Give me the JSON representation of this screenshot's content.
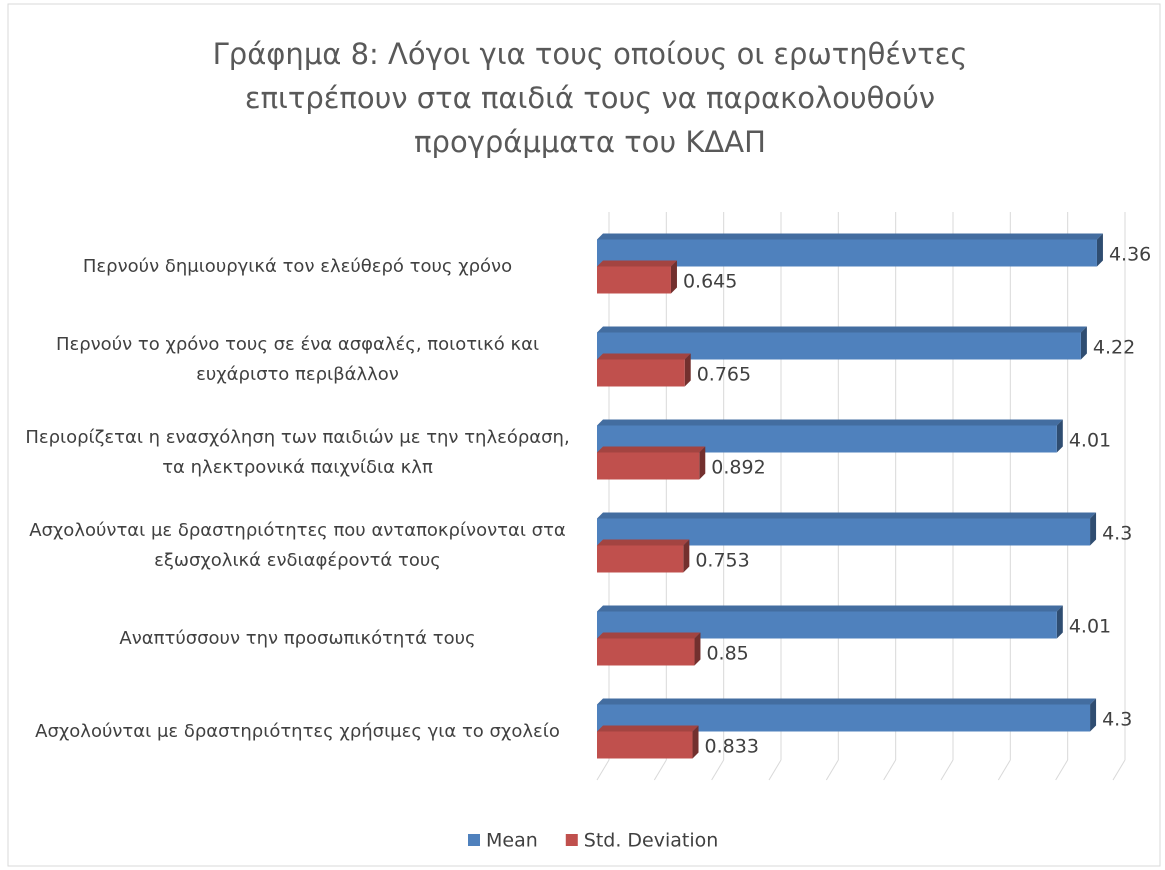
{
  "chart_data": {
    "type": "bar3d_horizontal",
    "title": "Γράφημα 8: Λόγοι για τους οποίους οι ερωτηθέντες επιτρέπουν στα παιδιά τους να παρακολουθούν προγράμματα του ΚΔΑΠ",
    "categories": [
      "Περνούν δημιουργικά τον ελεύθερό τους χρόνο",
      "Περνούν το χρόνο τους σε ένα ασφαλές, ποιοτικό και ευχάριστο περιβάλλον",
      "Περιορίζεται η ενασχόληση των παιδιών  με την τηλεόραση, τα ηλεκτρονικά παιχνίδια κλπ",
      "Ασχολούνται με δραστηριότητες που ανταποκρίνονται στα εξωσχολικά ενδιαφέροντά τους",
      "Αναπτύσσουν την προσωπικότητά τους",
      "Ασχολούνται με δραστηριότητες χρήσιμες για το σχολείο"
    ],
    "series": [
      {
        "name": "Mean",
        "color": "#4f81bd",
        "values": [
          4.36,
          4.22,
          4.01,
          4.3,
          4.01,
          4.3
        ]
      },
      {
        "name": "Std. Deviation",
        "color": "#c0504d",
        "values": [
          0.645,
          0.765,
          0.892,
          0.753,
          0.85,
          0.833
        ]
      }
    ],
    "xlim": [
      0,
      4.5
    ],
    "xticks": [
      0,
      0.5,
      1,
      1.5,
      2,
      2.5,
      3,
      3.5,
      4,
      4.5
    ],
    "grid": true,
    "legend": "bottom"
  }
}
